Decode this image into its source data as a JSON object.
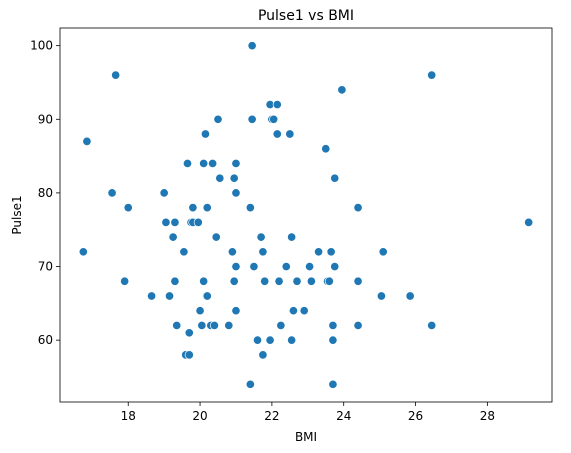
{
  "chart_data": {
    "type": "scatter",
    "title": "Pulse1 vs BMI",
    "xlabel": "BMI",
    "ylabel": "Pulse1",
    "xlim": [
      16.1,
      29.8
    ],
    "ylim": [
      51.6,
      102.4
    ],
    "xticks": [
      18,
      20,
      22,
      24,
      26,
      28
    ],
    "yticks": [
      60,
      70,
      80,
      90,
      100
    ],
    "grid": false,
    "legend": "none",
    "color": "#1f77b4",
    "series": [
      {
        "x": [
          16.75,
          16.85,
          17.55,
          17.65,
          17.9,
          18.0,
          18.65,
          19.0,
          19.05,
          19.15,
          19.25,
          19.3,
          19.3,
          19.35,
          19.55,
          19.6,
          19.65,
          19.7,
          19.7,
          19.75,
          19.8,
          19.8,
          19.95,
          20.0,
          20.05,
          20.1,
          20.1,
          20.15,
          20.2,
          20.2,
          20.3,
          20.35,
          20.4,
          20.45,
          20.5,
          20.55,
          20.8,
          20.9,
          20.95,
          20.95,
          21.0,
          21.0,
          21.0,
          21.0,
          21.0,
          21.4,
          21.4,
          21.45,
          21.45,
          21.5,
          21.6,
          21.7,
          21.75,
          21.75,
          21.8,
          21.95,
          21.95,
          22.0,
          22.05,
          22.15,
          22.15,
          22.2,
          22.25,
          22.4,
          22.5,
          22.55,
          22.55,
          22.6,
          22.7,
          22.9,
          23.05,
          23.1,
          23.3,
          23.5,
          23.55,
          23.6,
          23.65,
          23.7,
          23.7,
          23.7,
          23.75,
          23.75,
          23.95,
          24.4,
          24.4,
          24.4,
          25.05,
          25.1,
          25.85,
          26.45,
          26.45,
          29.15
        ],
        "y": [
          72,
          87,
          80,
          96,
          68,
          78,
          66,
          80,
          76,
          66,
          74,
          76,
          68,
          62,
          72,
          58,
          84,
          58,
          61,
          76,
          78,
          76,
          76,
          64,
          62,
          84,
          68,
          88,
          66,
          78,
          62,
          84,
          62,
          74,
          90,
          82,
          62,
          72,
          68,
          82,
          84,
          84,
          80,
          70,
          64,
          78,
          54,
          100,
          90,
          70,
          60,
          74,
          58,
          72,
          68,
          92,
          60,
          90,
          90,
          92,
          88,
          68,
          62,
          70,
          88,
          74,
          60,
          64,
          68,
          64,
          70,
          68,
          72,
          86,
          68,
          68,
          72,
          54,
          62,
          60,
          82,
          70,
          94,
          78,
          68,
          62,
          66,
          72,
          66,
          62,
          96,
          76
        ]
      }
    ]
  }
}
